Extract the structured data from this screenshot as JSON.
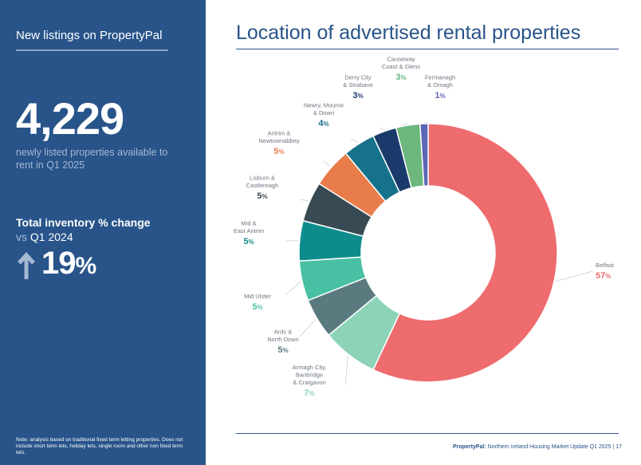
{
  "sidebar": {
    "title": "New listings on PropertyPal",
    "big_number": "4,229",
    "big_caption": "newly listed properties available to rent in Q1 2025",
    "inventory_title": "Total inventory % change",
    "inventory_vs": "vs",
    "inventory_period": "Q1 2024",
    "inventory_change": "19",
    "inventory_change_unit": "%",
    "arrow_icon": "arrow-up-icon",
    "note": "Note: analysis based on traditional fixed term letting properties. Does not include short term lets, holiday lets, single room and other non fixed term lets."
  },
  "footer": {
    "brand": "PropertyPal:",
    "text": "Northern Ireland Housing Market Update Q1 2025",
    "separator": "|",
    "page_number": "17"
  },
  "chart_data": {
    "type": "pie",
    "title": "Location of advertised rental properties",
    "donut": true,
    "unit": "%",
    "slices": [
      {
        "label": [
          "Belfast"
        ],
        "value": 57,
        "color": "#ee6b6e"
      },
      {
        "label": [
          "Armagh City,",
          "Banbridge",
          "& Craigavon"
        ],
        "value": 7,
        "color": "#8dd3b7"
      },
      {
        "label": [
          "Ards &",
          "North Down"
        ],
        "value": 5,
        "color": "#5a7a80"
      },
      {
        "label": [
          "Mid Ulster"
        ],
        "value": 5,
        "color": "#48c0a3"
      },
      {
        "label": [
          "Mid &",
          "East Antrim"
        ],
        "value": 5,
        "color": "#0e8c8c"
      },
      {
        "label": [
          "Lisburn &",
          "Castlereagh"
        ],
        "value": 5,
        "color": "#384a53"
      },
      {
        "label": [
          "Antrim &",
          "Newtownabbey"
        ],
        "value": 5,
        "color": "#e87d4b"
      },
      {
        "label": [
          "Newry, Mourne",
          "& Down"
        ],
        "value": 4,
        "color": "#16728a"
      },
      {
        "label": [
          "Derry City",
          "& Strabane"
        ],
        "value": 3,
        "color": "#1a3a6b"
      },
      {
        "label": [
          "Causeway",
          "Coast & Glens"
        ],
        "value": 3,
        "color": "#6cb77e"
      },
      {
        "label": [
          "Fermanagh",
          "& Omagh"
        ],
        "value": 1,
        "color": "#5b67b5"
      }
    ]
  }
}
